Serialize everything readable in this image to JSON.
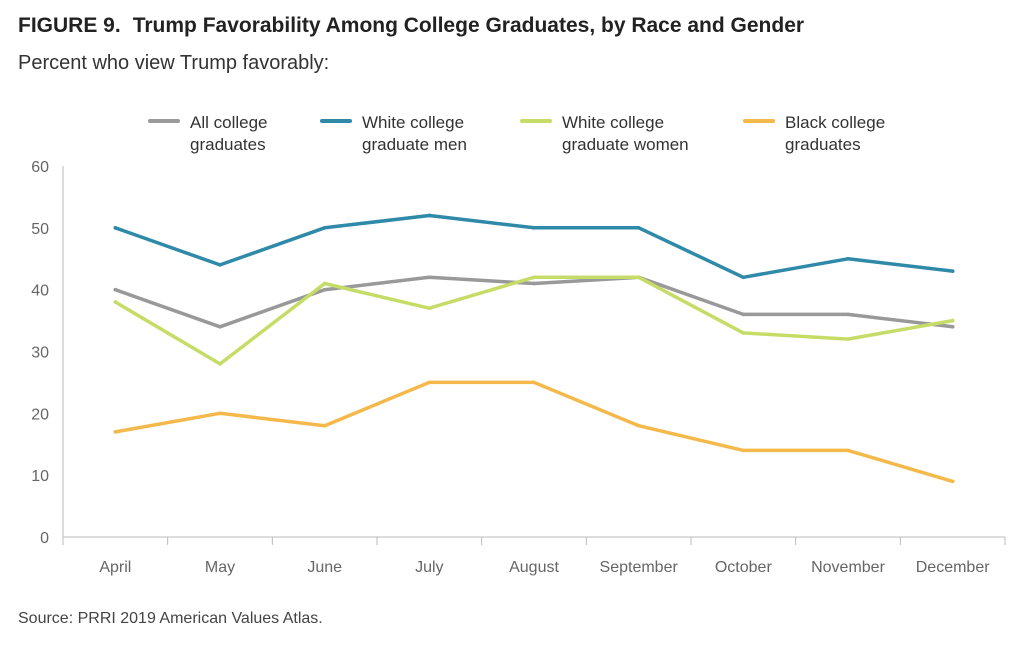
{
  "figure": {
    "label": "FIGURE 9.",
    "title": "Trump Favorability Among College Graduates, by Race and Gender",
    "subtitle": "Percent who view Trump favorably:",
    "source": "Source: PRRI 2019 American Values Atlas."
  },
  "chart_data": {
    "type": "line",
    "title": "Trump Favorability Among College Graduates, by Race and Gender",
    "subtitle": "Percent who view Trump favorably:",
    "xlabel": "",
    "ylabel": "",
    "ylim": [
      0,
      60
    ],
    "yticks": [
      0,
      10,
      20,
      30,
      40,
      50,
      60
    ],
    "grid": false,
    "legend_position": "top",
    "categories": [
      "April",
      "May",
      "June",
      "July",
      "August",
      "September",
      "October",
      "November",
      "December"
    ],
    "series": [
      {
        "name": "All college graduates",
        "legend_lines": [
          "All college",
          "graduates"
        ],
        "color": "#999999",
        "values": [
          40,
          34,
          40,
          42,
          41,
          42,
          36,
          36,
          34
        ]
      },
      {
        "name": "White college graduate men",
        "legend_lines": [
          "White college",
          "graduate men"
        ],
        "color": "#2e8aa8",
        "values": [
          50,
          44,
          50,
          52,
          50,
          50,
          42,
          45,
          43
        ]
      },
      {
        "name": "White college graduate women",
        "legend_lines": [
          "White college",
          "graduate women"
        ],
        "color": "#c5dd67",
        "values": [
          38,
          28,
          41,
          37,
          42,
          42,
          33,
          32,
          35
        ]
      },
      {
        "name": "Black college graduates",
        "legend_lines": [
          "Black college",
          "graduates"
        ],
        "color": "#f5b84a",
        "values": [
          17,
          20,
          18,
          25,
          25,
          18,
          14,
          14,
          9
        ]
      }
    ]
  }
}
